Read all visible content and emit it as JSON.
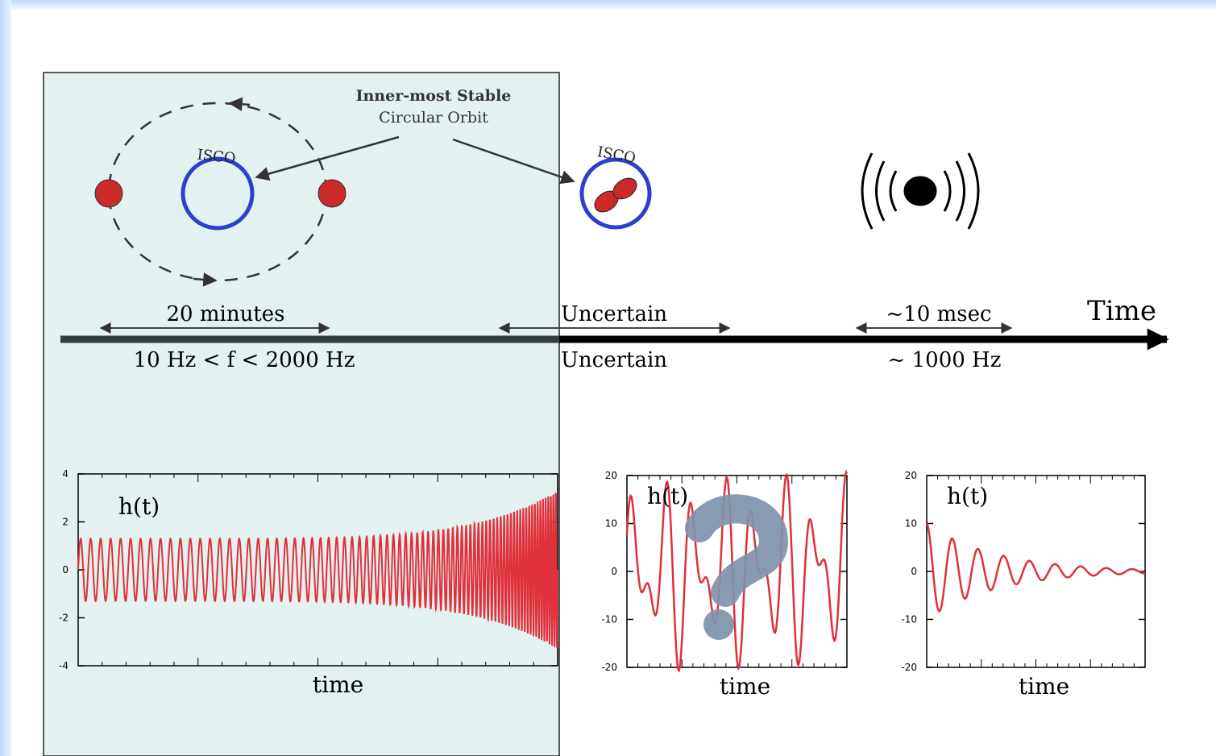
{
  "callout": {
    "lines": [
      "Inner-most Stable",
      "Circular Orbit"
    ]
  },
  "isco_labels": [
    "ISCO",
    "ISCO"
  ],
  "timeline": {
    "axis_label": "Time",
    "phases": [
      {
        "duration": "20 minutes",
        "frequency": "10 Hz  < f <  2000 Hz"
      },
      {
        "duration": "Uncertain",
        "frequency": "Uncertain"
      },
      {
        "duration": "~10 msec",
        "frequency": "~ 1000 Hz"
      }
    ]
  },
  "panels": [
    {
      "ylabel": "h(t)",
      "xlabel": "time",
      "ylim": [
        -4,
        4
      ],
      "yticks": [
        -4,
        -2,
        0,
        2,
        4
      ]
    },
    {
      "ylabel": "h(t)",
      "xlabel": "time",
      "ylim": [
        -20,
        20
      ],
      "yticks": [
        -20,
        -10,
        0,
        10,
        20
      ]
    },
    {
      "ylabel": "h(t)",
      "xlabel": "time",
      "ylim": [
        -20,
        20
      ],
      "yticks": [
        -20,
        -10,
        0,
        10,
        20
      ]
    }
  ]
}
